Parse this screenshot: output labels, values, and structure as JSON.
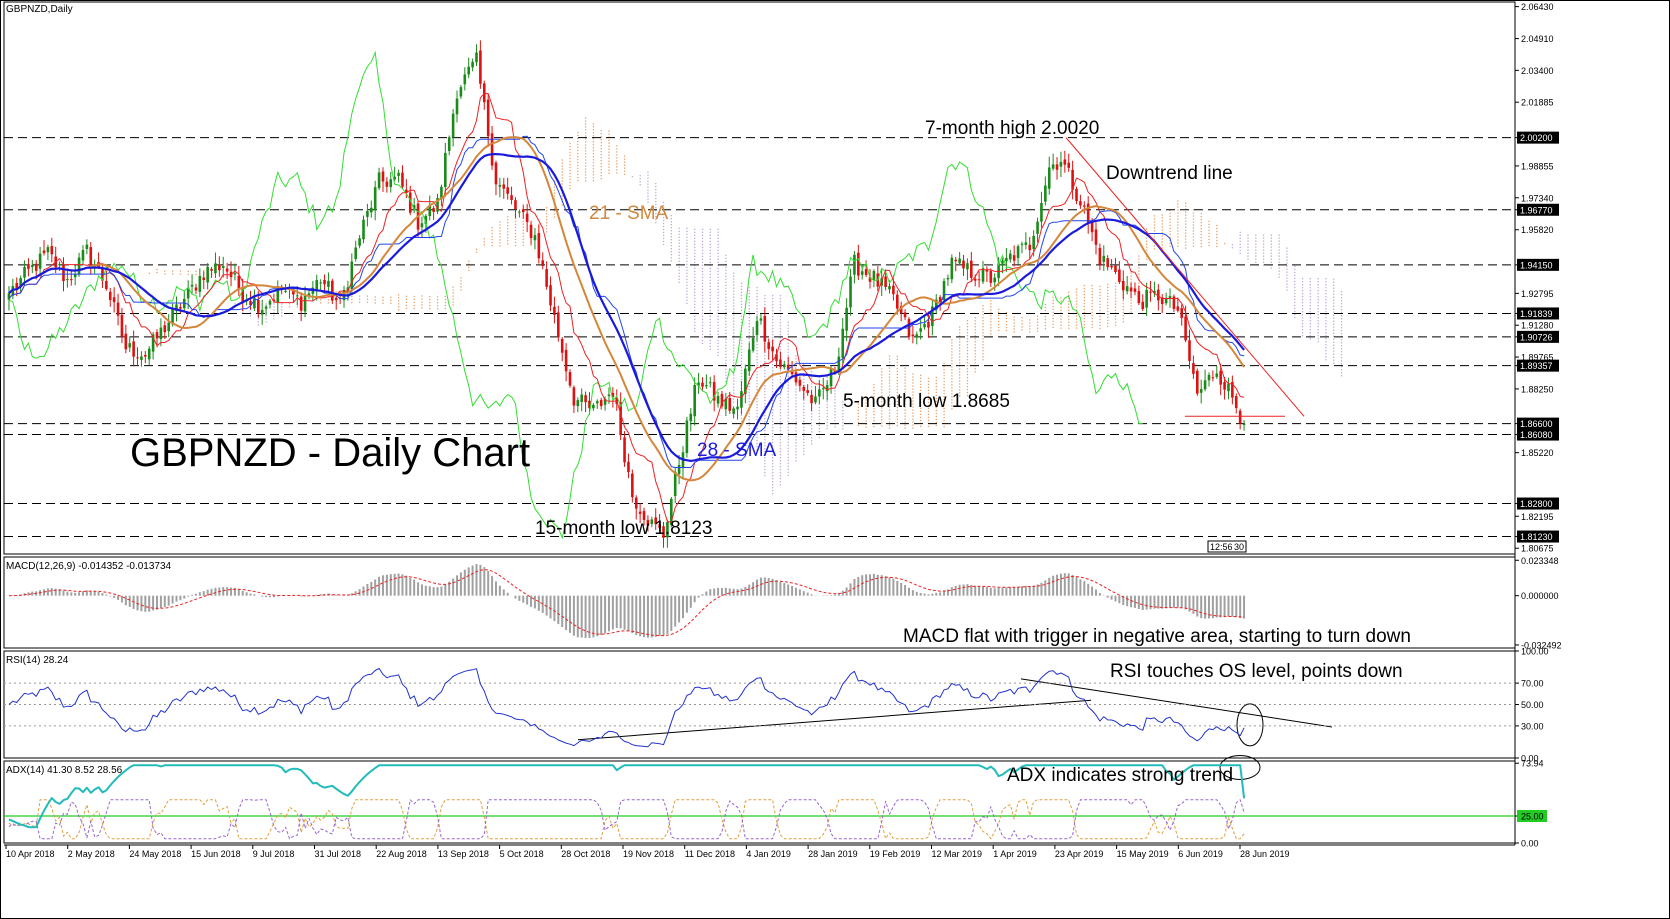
{
  "chart_data": [
    {
      "type": "line",
      "panel": "price",
      "title": "GBPNZD,Daily",
      "headline": "GBPNZD - Daily Chart",
      "y_ticks": [
        "2.06430",
        "2.04910",
        "2.03400",
        "2.01885",
        "2.00200",
        "1.98855",
        "1.97340",
        "1.96770",
        "1.95820",
        "1.94150",
        "1.92795",
        "1.91839",
        "1.91280",
        "1.90726",
        "1.89765",
        "1.89357",
        "1.88250",
        "1.86600",
        "1.86080",
        "1.85220",
        "1.82800",
        "1.82195",
        "1.81230",
        "1.80675"
      ],
      "ylim": [
        1.804,
        2.0665
      ],
      "levels": [
        {
          "value": 2.002,
          "label": "2.00200"
        },
        {
          "value": 1.9677,
          "label": "1.96770"
        },
        {
          "value": 1.9415,
          "label": "1.94150"
        },
        {
          "value": 1.91839,
          "label": "1.91839"
        },
        {
          "value": 1.90726,
          "label": "1.90726"
        },
        {
          "value": 1.89357,
          "label": "1.89357"
        },
        {
          "value": 1.866,
          "label": "1.86600"
        },
        {
          "value": 1.8608,
          "label": "1.86080"
        },
        {
          "value": 1.828,
          "label": "1.82800"
        },
        {
          "value": 1.8123,
          "label": "1.81230"
        }
      ],
      "x_labels": [
        "10 Apr 2018",
        "2 May 2018",
        "24 May 2018",
        "15 Jun 2018",
        "9 Jul 2018",
        "31 Jul 2018",
        "22 Aug 2018",
        "13 Sep 2018",
        "5 Oct 2018",
        "28 Oct 2018",
        "19 Nov 2018",
        "11 Dec 2018",
        "4 Jan 2019",
        "28 Jan 2019",
        "19 Feb 2019",
        "12 Mar 2019",
        "1 Apr 2019",
        "23 Apr 2019",
        "15 May 2019",
        "6 Jun 2019",
        "28 Jun 2019"
      ],
      "close_anchors": [
        [
          0,
          1.928
        ],
        [
          5,
          1.938
        ],
        [
          10,
          1.947
        ],
        [
          15,
          1.934
        ],
        [
          20,
          1.948
        ],
        [
          25,
          1.932
        ],
        [
          30,
          1.902
        ],
        [
          35,
          1.899
        ],
        [
          40,
          1.912
        ],
        [
          45,
          1.925
        ],
        [
          50,
          1.938
        ],
        [
          55,
          1.942
        ],
        [
          60,
          1.928
        ],
        [
          65,
          1.922
        ],
        [
          70,
          1.93
        ],
        [
          75,
          1.924
        ],
        [
          80,
          1.935
        ],
        [
          85,
          1.922
        ],
        [
          90,
          1.955
        ],
        [
          95,
          1.981
        ],
        [
          100,
          1.982
        ],
        [
          105,
          1.962
        ],
        [
          110,
          1.97
        ],
        [
          115,
          2.025
        ],
        [
          120,
          2.038
        ],
        [
          125,
          1.982
        ],
        [
          130,
          1.968
        ],
        [
          135,
          1.955
        ],
        [
          140,
          1.916
        ],
        [
          145,
          1.878
        ],
        [
          150,
          1.872
        ],
        [
          155,
          1.882
        ],
        [
          160,
          1.832
        ],
        [
          165,
          1.818
        ],
        [
          168,
          1.813
        ],
        [
          172,
          1.848
        ],
        [
          177,
          1.888
        ],
        [
          182,
          1.877
        ],
        [
          187,
          1.872
        ],
        [
          192,
          1.918
        ],
        [
          197,
          1.896
        ],
        [
          202,
          1.887
        ],
        [
          207,
          1.875
        ],
        [
          212,
          1.892
        ],
        [
          217,
          1.942
        ],
        [
          222,
          1.935
        ],
        [
          227,
          1.925
        ],
        [
          232,
          1.905
        ],
        [
          237,
          1.918
        ],
        [
          242,
          1.942
        ],
        [
          247,
          1.938
        ],
        [
          252,
          1.935
        ],
        [
          257,
          1.945
        ],
        [
          262,
          1.951
        ],
        [
          267,
          1.988
        ],
        [
          270,
          1.992
        ],
        [
          275,
          1.972
        ],
        [
          280,
          1.945
        ],
        [
          285,
          1.935
        ],
        [
          290,
          1.924
        ],
        [
          295,
          1.927
        ],
        [
          300,
          1.92
        ],
        [
          305,
          1.88
        ],
        [
          310,
          1.892
        ],
        [
          315,
          1.875
        ],
        [
          317,
          1.866
        ]
      ],
      "series": [
        {
          "name": "21 - SMA",
          "color": "#d4873a"
        },
        {
          "name": "28 - SMA",
          "color": "#1a1adc"
        }
      ],
      "annotations": {
        "high": "7-month high 2.0020",
        "downtrend": "Downtrend line",
        "sma21": "21 - SMA",
        "sma28": "28 - SMA",
        "low5": "5-month low 1.8685",
        "low15": "15-month low 1.8123"
      },
      "time_box": "12:56",
      "time_box_suffix": "30"
    },
    {
      "type": "bar",
      "panel": "macd",
      "title": "MACD(12,26,9) -0.014352 -0.013734",
      "y_ticks": [
        "0.023348",
        "0.000000",
        "-0.032492"
      ],
      "ylim": [
        -0.0345,
        0.0255
      ],
      "note": "MACD flat with trigger in negative area, starting to turn down",
      "last_values": [
        -0.014352,
        -0.013734
      ]
    },
    {
      "type": "line",
      "panel": "rsi",
      "title": "RSI(14) 28.24",
      "y_ticks": [
        "100.00",
        "70.00",
        "50.00",
        "30.00",
        "0.00"
      ],
      "ylim": [
        0,
        100
      ],
      "last_value": 28.24,
      "note": "RSI touches OS level, points down"
    },
    {
      "type": "line",
      "panel": "adx",
      "title": "ADX(14) 41.30 8.52 28.56",
      "y_ticks": [
        "73.94",
        "25.00",
        "0.00"
      ],
      "ylim": [
        0,
        76
      ],
      "level": 25,
      "last_values": [
        41.3,
        8.52,
        28.56
      ],
      "note": "ADX indicates strong trend"
    }
  ]
}
